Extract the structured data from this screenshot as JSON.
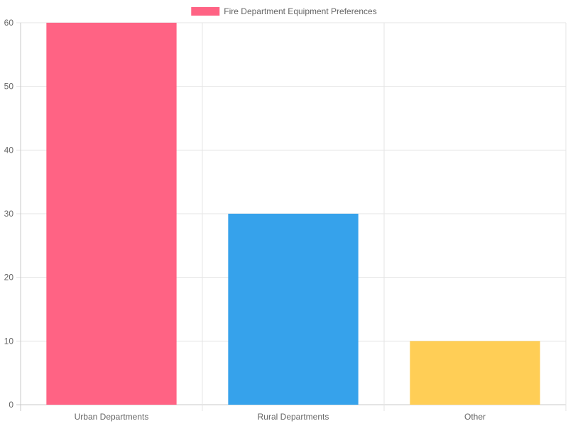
{
  "chart_data": {
    "type": "bar",
    "categories": [
      "Urban Departments",
      "Rural Departments",
      "Other"
    ],
    "series": [
      {
        "name": "Fire Department Equipment Preferences",
        "values": [
          60,
          30,
          10
        ],
        "colors": [
          "#ff6384",
          "#36a2eb",
          "#ffce56"
        ]
      }
    ],
    "legend": {
      "position": "top",
      "swatch_color": "#ff6384"
    },
    "y_ticks": [
      0,
      10,
      20,
      30,
      40,
      50,
      60
    ],
    "ylim": [
      0,
      60
    ],
    "grid": true,
    "colors": {
      "grid": "#e5e5e5",
      "axis": "#c8c8c8",
      "text": "#666666"
    }
  }
}
